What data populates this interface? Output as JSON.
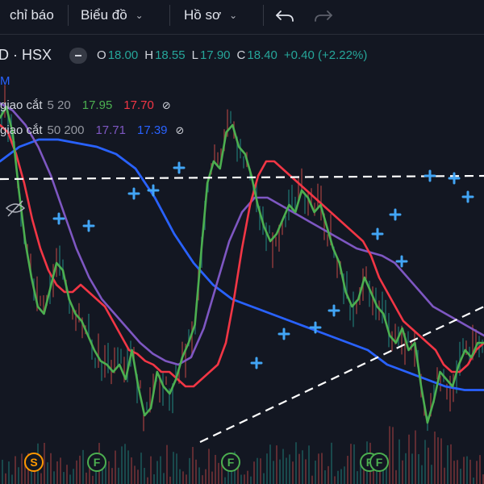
{
  "toolbar": {
    "indicators_label": "chỉ báo",
    "charts_label": "Biểu đồ",
    "profile_label": "Hồ sơ"
  },
  "symbol": {
    "name": "D · HSX",
    "open_key": "O",
    "open": "18.00",
    "high_key": "H",
    "high": "18.55",
    "low_key": "L",
    "low": "17.90",
    "close_key": "C",
    "close": "18.40",
    "change": "+0.40 (+2.22%)",
    "interval": "M"
  },
  "indicators": [
    {
      "name": "giao cắt",
      "params": "5 20",
      "value_fast": "17.95",
      "value_slow": "17.70"
    },
    {
      "name": "giao cắt",
      "params": "50 200",
      "value_fast": "17.71",
      "value_slow": "17.39"
    }
  ],
  "colors": {
    "background": "#131722",
    "ma5": "#4caf50",
    "ma20": "#f23645",
    "ma50": "#7e57c2",
    "ma200": "#2962ff",
    "cross_marker": "#42a5f5",
    "event_ring_f": "#4caf50",
    "event_ring_s": "#ff9800",
    "dashed_lines": "#ffffff"
  },
  "events": [
    {
      "letter": "S",
      "type": "s"
    },
    {
      "letter": "F",
      "type": "f"
    },
    {
      "letter": "F",
      "type": "f"
    },
    {
      "letter": "F",
      "type": "f"
    },
    {
      "letter": "F",
      "type": "f"
    }
  ],
  "chart_data": {
    "type": "line",
    "series": [
      {
        "values": [
          0.92,
          0.95,
          0.88,
          0.72,
          0.58,
          0.48,
          0.4,
          0.38,
          0.45,
          0.52,
          0.5,
          0.42,
          0.38,
          0.36,
          0.32,
          0.28,
          0.25,
          0.24,
          0.22,
          0.24,
          0.2,
          0.28,
          0.18,
          0.1,
          0.12,
          0.22,
          0.18,
          0.16,
          0.2,
          0.26,
          0.3,
          0.35,
          0.55,
          0.74,
          0.8,
          0.78,
          0.88,
          0.9,
          0.84,
          0.82,
          0.76,
          0.68,
          0.62,
          0.58,
          0.6,
          0.64,
          0.68,
          0.66,
          0.72,
          0.7,
          0.66,
          0.68,
          0.62,
          0.56,
          0.52,
          0.44,
          0.4,
          0.42,
          0.48,
          0.44,
          0.4,
          0.38,
          0.32,
          0.3,
          0.34,
          0.28,
          0.3,
          0.18,
          0.08,
          0.14,
          0.22,
          0.2,
          0.18,
          0.24,
          0.28,
          0.26,
          0.3,
          0.3
        ]
      },
      {
        "values": [
          0.9,
          0.88,
          0.82,
          0.74,
          0.64,
          0.56,
          0.5,
          0.46,
          0.44,
          0.44,
          0.46,
          0.44,
          0.42,
          0.4,
          0.36,
          0.32,
          0.28,
          0.27,
          0.25,
          0.24,
          0.22,
          0.22,
          0.2,
          0.18,
          0.18,
          0.2,
          0.22,
          0.24,
          0.3,
          0.42,
          0.56,
          0.68,
          0.76,
          0.8,
          0.8,
          0.78,
          0.76,
          0.74,
          0.72,
          0.7,
          0.68,
          0.66,
          0.64,
          0.62,
          0.6,
          0.58,
          0.54,
          0.48,
          0.44,
          0.4,
          0.36,
          0.34,
          0.32,
          0.3,
          0.28,
          0.24,
          0.22,
          0.22,
          0.24,
          0.28,
          0.3
        ]
      },
      {
        "values": [
          0.96,
          0.94,
          0.9,
          0.84,
          0.76,
          0.66,
          0.56,
          0.48,
          0.42,
          0.38,
          0.34,
          0.3,
          0.27,
          0.25,
          0.24,
          0.26,
          0.34,
          0.46,
          0.58,
          0.66,
          0.7,
          0.7,
          0.68,
          0.66,
          0.64,
          0.62,
          0.6,
          0.58,
          0.56,
          0.55,
          0.54,
          0.52,
          0.48,
          0.44,
          0.4,
          0.38,
          0.36,
          0.34,
          0.32
        ]
      },
      {
        "values": [
          0.8,
          0.84,
          0.86,
          0.86,
          0.85,
          0.84,
          0.82,
          0.78,
          0.7,
          0.6,
          0.52,
          0.46,
          0.42,
          0.4,
          0.38,
          0.36,
          0.34,
          0.32,
          0.3,
          0.28,
          0.24,
          0.22,
          0.2,
          0.18,
          0.17,
          0.17
        ]
      }
    ]
  }
}
